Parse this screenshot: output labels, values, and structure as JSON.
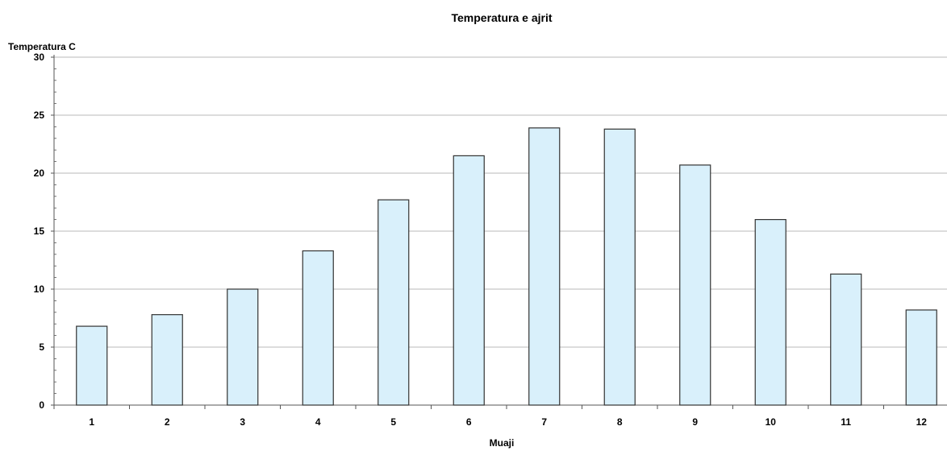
{
  "chart_data": {
    "type": "bar",
    "title": "Temperatura e ajrit",
    "xlabel": "Muaji",
    "ylabel": "Temperatura C",
    "categories": [
      "1",
      "2",
      "3",
      "4",
      "5",
      "6",
      "7",
      "8",
      "9",
      "10",
      "11",
      "12"
    ],
    "values": [
      6.8,
      7.8,
      10.0,
      13.3,
      17.7,
      21.5,
      23.9,
      23.8,
      20.7,
      16.0,
      11.3,
      8.2
    ],
    "ylim": [
      0,
      30
    ],
    "yticks": [
      0,
      5,
      10,
      15,
      20,
      25,
      30
    ],
    "grid": true,
    "legend": "none",
    "colors": {
      "bar_fill": "#d9f0fb",
      "bar_stroke": "#333333",
      "grid": "#b8b8b8",
      "axis": "#555555"
    }
  }
}
